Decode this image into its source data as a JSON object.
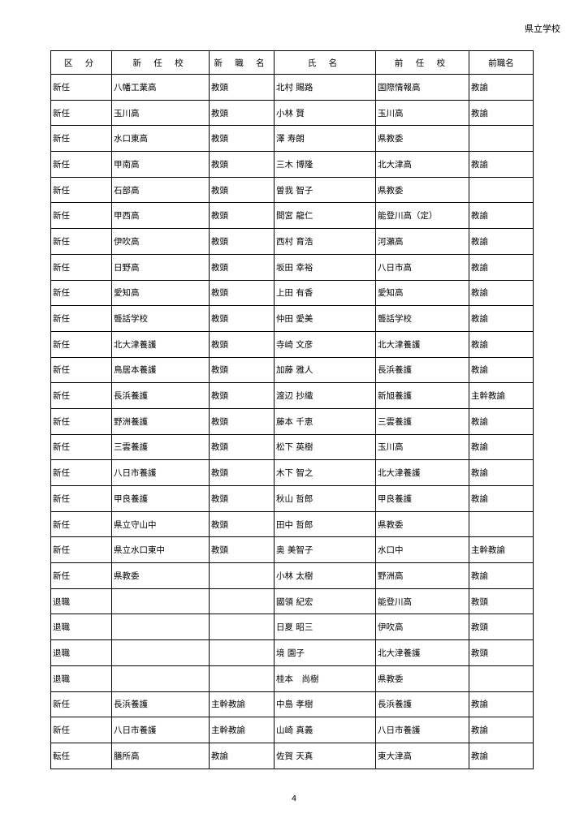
{
  "header_right": "県立学校",
  "columns": [
    "区 分",
    "新 任 校",
    "新 職 名",
    "氏 名",
    "前 任 校",
    "前職名"
  ],
  "rows": [
    [
      "新任",
      "八幡工業高",
      "教頭",
      "北村 賜路",
      "国際情報高",
      "教諭"
    ],
    [
      "新任",
      "玉川高",
      "教頭",
      "小林 賢",
      "玉川高",
      "教諭"
    ],
    [
      "新任",
      "水口東高",
      "教頭",
      "澤 寿朗",
      "県教委",
      ""
    ],
    [
      "新任",
      "甲南高",
      "教頭",
      "三木 博隆",
      "北大津高",
      "教諭"
    ],
    [
      "新任",
      "石部高",
      "教頭",
      "曽我 智子",
      "県教委",
      ""
    ],
    [
      "新任",
      "甲西高",
      "教頭",
      "間宮 龍仁",
      "能登川高（定）",
      "教諭"
    ],
    [
      "新任",
      "伊吹高",
      "教頭",
      "西村 育浩",
      "河瀬高",
      "教諭"
    ],
    [
      "新任",
      "日野高",
      "教頭",
      "坂田 幸裕",
      "八日市高",
      "教諭"
    ],
    [
      "新任",
      "愛知高",
      "教頭",
      "上田 有香",
      "愛知高",
      "教諭"
    ],
    [
      "新任",
      "聾話学校",
      "教頭",
      "仲田 愛美",
      "聾話学校",
      "教諭"
    ],
    [
      "新任",
      "北大津養護",
      "教頭",
      "寺崎 文彦",
      "北大津養護",
      "教諭"
    ],
    [
      "新任",
      "鳥居本養護",
      "教頭",
      "加藤 雅人",
      "長浜養護",
      "教諭"
    ],
    [
      "新任",
      "長浜養護",
      "教頭",
      "渡辺 抄織",
      "新旭養護",
      "主幹教諭"
    ],
    [
      "新任",
      "野洲養護",
      "教頭",
      "藤本 千恵",
      "三雲養護",
      "教諭"
    ],
    [
      "新任",
      "三雲養護",
      "教頭",
      "松下 英樹",
      "玉川高",
      "教諭"
    ],
    [
      "新任",
      "八日市養護",
      "教頭",
      "木下 智之",
      "北大津養護",
      "教諭"
    ],
    [
      "新任",
      "甲良養護",
      "教頭",
      "秋山 哲郎",
      "甲良養護",
      "教諭"
    ],
    [
      "新任",
      "県立守山中",
      "教頭",
      "田中 哲郎",
      "県教委",
      ""
    ],
    [
      "新任",
      "県立水口東中",
      "教頭",
      "奥 美智子",
      "水口中",
      "主幹教諭"
    ],
    [
      "新任",
      "県教委",
      "",
      "小林 太樹",
      "野洲高",
      "教諭"
    ],
    [
      "退職",
      "",
      "",
      "國領 紀宏",
      "能登川高",
      "教頭"
    ],
    [
      "退職",
      "",
      "",
      "日夏 昭三",
      "伊吹高",
      "教頭"
    ],
    [
      "退職",
      "",
      "",
      "境 園子",
      "北大津養護",
      "教頭"
    ],
    [
      "退職",
      "",
      "",
      "桂本　尚樹",
      "県教委",
      ""
    ],
    [
      "新任",
      "長浜養護",
      "主幹教諭",
      "中島 孝樹",
      "長浜養護",
      "教諭"
    ],
    [
      "新任",
      "八日市養護",
      "主幹教諭",
      "山崎 真義",
      "八日市養護",
      "教諭"
    ],
    [
      "転任",
      "膳所高",
      "教諭",
      "佐賀 天真",
      "東大津高",
      "教諭"
    ]
  ],
  "page_number": "4"
}
